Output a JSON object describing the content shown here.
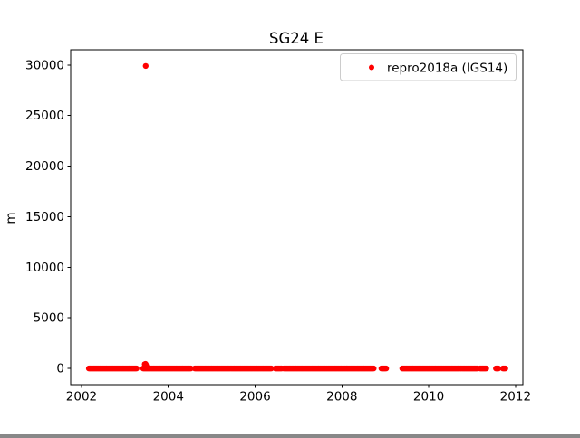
{
  "chart_data": {
    "type": "scatter",
    "title": "SG24 E",
    "xlabel": "",
    "ylabel": "m",
    "xlim": [
      2001.75,
      2012.17
    ],
    "ylim": [
      -1600,
      31500
    ],
    "xticks": [
      2002,
      2004,
      2006,
      2008,
      2010,
      2012
    ],
    "yticks": [
      0,
      5000,
      10000,
      15000,
      20000,
      25000,
      30000
    ],
    "grid": false,
    "legend_position": "upper right",
    "series": [
      {
        "name": "repro2018a (IGS14)",
        "color": "#ff0000",
        "marker": "dot",
        "zero_value_runs": [
          [
            2002.17,
            2003.27
          ],
          [
            2003.42,
            2004.53
          ],
          [
            2004.61,
            2006.38
          ],
          [
            2006.47,
            2006.62
          ],
          [
            2006.66,
            2008.74
          ],
          [
            2008.91,
            2009.02
          ],
          [
            2009.39,
            2011.12
          ],
          [
            2011.18,
            2011.33
          ],
          [
            2011.55,
            2011.61
          ],
          [
            2011.71,
            2011.77
          ]
        ],
        "outlier_points": [
          [
            2003.48,
            29900
          ],
          [
            2003.455,
            420
          ],
          [
            2003.465,
            300
          ],
          [
            2003.475,
            450
          ],
          [
            2003.485,
            350
          ],
          [
            2003.495,
            220
          ],
          [
            2003.505,
            120
          ],
          [
            2003.52,
            60
          ]
        ]
      }
    ],
    "legend": {
      "label": "repro2018a (IGS14)",
      "marker_color": "#ff0000"
    },
    "colors": {
      "marker": "#ff0000",
      "spine": "#000000",
      "legend_border": "#cccccc",
      "background": "#ffffff"
    }
  }
}
